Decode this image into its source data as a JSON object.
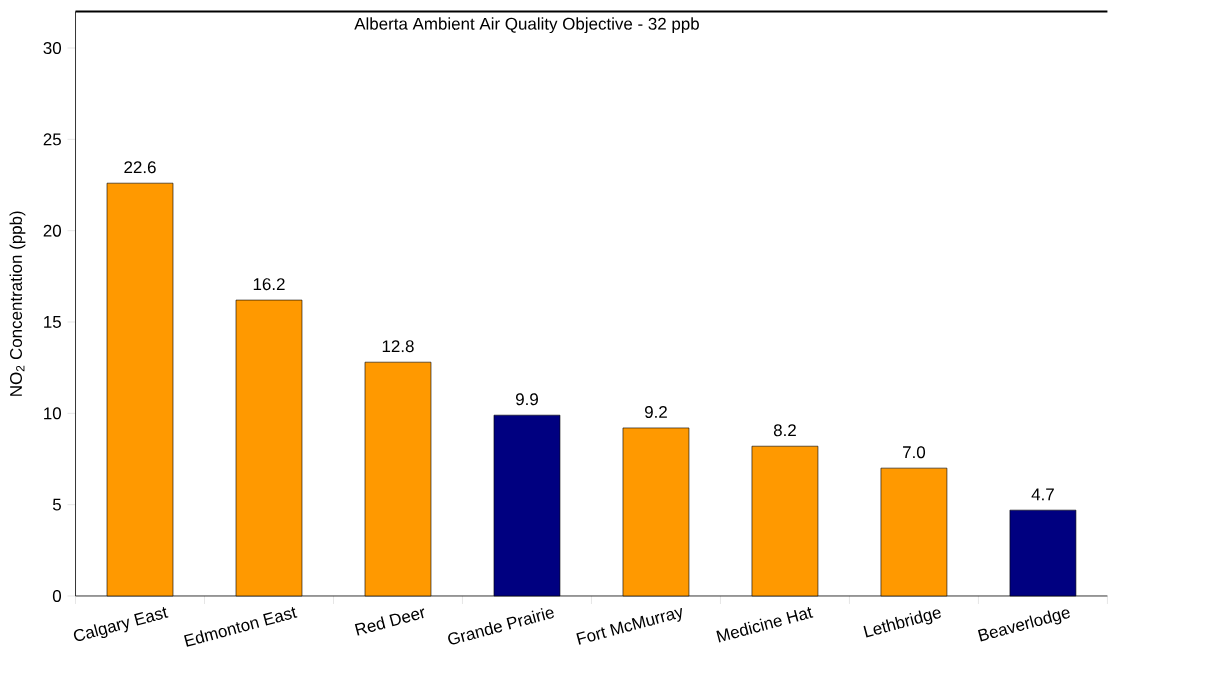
{
  "chart_data": {
    "type": "bar",
    "ylabel": "NO$_{2}$  Concentration (ppb)",
    "categories": [
      "Calgary East",
      "Edmonton East",
      "Red Deer",
      "Grande Prairie",
      "Fort McMurray",
      "Medicine Hat",
      "Lethbridge",
      "Beaverlodge"
    ],
    "values": [
      22.6,
      16.2,
      12.8,
      9.9,
      9.2,
      8.2,
      7.0,
      4.7
    ],
    "value_labels": [
      "22.6",
      "16.2",
      "12.8",
      "9.9",
      "9.2",
      "8.2",
      "7.0",
      "4.7"
    ],
    "colors": [
      "#ff9900",
      "#ff9900",
      "#ff9900",
      "#000080",
      "#ff9900",
      "#ff9900",
      "#ff9900",
      "#000080"
    ],
    "ylim": [
      0,
      32
    ],
    "yticks": [
      0,
      5,
      10,
      15,
      20,
      25,
      30
    ],
    "ref_lines": [
      {
        "axis": "y",
        "value": 32,
        "label": "Alberta Ambient Air Quality Objective - 32 ppb"
      }
    ]
  }
}
